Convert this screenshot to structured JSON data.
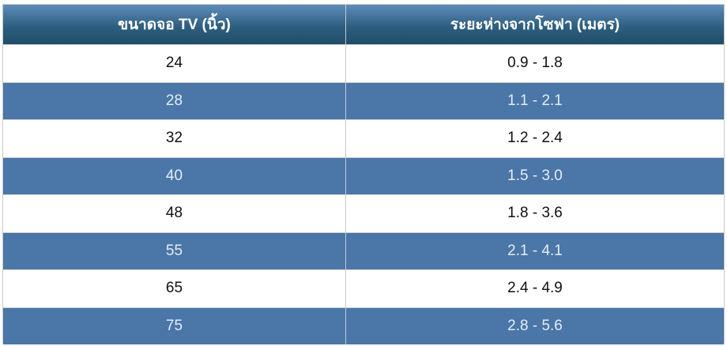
{
  "table": {
    "headers": [
      "ขนาดจอ TV (นิ้ว)",
      "ระยะห่างจากโซฟา (เมตร)"
    ],
    "rows": [
      [
        24,
        "0.9 - 1.8"
      ],
      [
        28,
        "1.1 - 2.1"
      ],
      [
        32,
        "1.2 - 2.4"
      ],
      [
        40,
        "1.5 - 3.0"
      ],
      [
        48,
        "1.8 - 3.6"
      ],
      [
        55,
        "2.1 - 4.1"
      ],
      [
        65,
        "2.4 - 4.9"
      ],
      [
        75,
        "2.8 - 5.6"
      ]
    ]
  }
}
